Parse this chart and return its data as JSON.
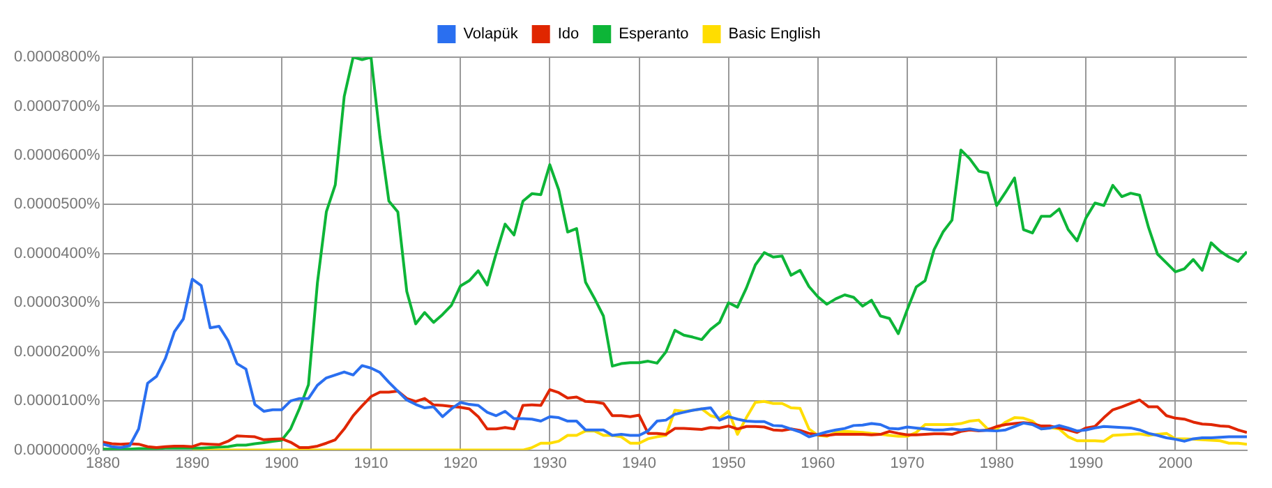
{
  "chart_data": {
    "type": "line",
    "x": [
      1880,
      1881,
      1882,
      1883,
      1884,
      1885,
      1886,
      1887,
      1888,
      1889,
      1890,
      1891,
      1892,
      1893,
      1894,
      1895,
      1896,
      1897,
      1898,
      1899,
      1900,
      1901,
      1902,
      1903,
      1904,
      1905,
      1906,
      1907,
      1908,
      1909,
      1910,
      1911,
      1912,
      1913,
      1914,
      1915,
      1916,
      1917,
      1918,
      1919,
      1920,
      1921,
      1922,
      1923,
      1924,
      1925,
      1926,
      1927,
      1928,
      1929,
      1930,
      1931,
      1932,
      1933,
      1934,
      1935,
      1936,
      1937,
      1938,
      1939,
      1940,
      1941,
      1942,
      1943,
      1944,
      1945,
      1946,
      1947,
      1948,
      1949,
      1950,
      1951,
      1952,
      1953,
      1954,
      1955,
      1956,
      1957,
      1958,
      1959,
      1960,
      1961,
      1962,
      1963,
      1964,
      1965,
      1966,
      1967,
      1968,
      1969,
      1970,
      1971,
      1972,
      1973,
      1974,
      1975,
      1976,
      1977,
      1978,
      1979,
      1980,
      1981,
      1982,
      1983,
      1984,
      1985,
      1986,
      1987,
      1988,
      1989,
      1990,
      1991,
      1992,
      1993,
      1994,
      1995,
      1996,
      1997,
      1998,
      1999,
      2000,
      2001,
      2002,
      2003,
      2004,
      2005,
      2006,
      2007,
      2008
    ],
    "series": [
      {
        "name": "Volapük",
        "color": "#2a6ff0",
        "values": [
          1.2e-06,
          7e-07,
          5e-07,
          9e-07,
          4.3e-06,
          1.36e-05,
          1.5e-05,
          1.87e-05,
          2.41e-05,
          2.67e-05,
          3.48e-05,
          3.35e-05,
          2.49e-05,
          2.52e-05,
          2.23e-05,
          1.76e-05,
          1.65e-05,
          9.3e-06,
          7.9e-06,
          8.2e-06,
          8.2e-06,
          1e-05,
          1.05e-05,
          1.05e-05,
          1.32e-05,
          1.47e-05,
          1.53e-05,
          1.59e-05,
          1.53e-05,
          1.72e-05,
          1.67e-05,
          1.58e-05,
          1.38e-05,
          1.2e-05,
          1.02e-05,
          9.3e-06,
          8.6e-06,
          8.8e-06,
          6.8e-06,
          8.4e-06,
          9.7e-06,
          9.3e-06,
          9.1e-06,
          7.7e-06,
          7e-06,
          7.9e-06,
          6.4e-06,
          6.4e-06,
          6.3e-06,
          5.9e-06,
          6.8e-06,
          6.6e-06,
          5.9e-06,
          5.9e-06,
          4.1e-06,
          4.1e-06,
          4.1e-06,
          3e-06,
          3.2e-06,
          3e-06,
          3e-06,
          3.9e-06,
          5.9e-06,
          6.1e-06,
          7.3e-06,
          7.7e-06,
          8.1e-06,
          8.4e-06,
          8.6e-06,
          6.1e-06,
          6.8e-06,
          6.3e-06,
          5.9e-06,
          5.8e-06,
          5.8e-06,
          5e-06,
          4.9e-06,
          4.3e-06,
          3.7e-06,
          2.7e-06,
          3.2e-06,
          3.7e-06,
          4.1e-06,
          4.4e-06,
          5e-06,
          5.1e-06,
          5.4e-06,
          5.2e-06,
          4.4e-06,
          4.3e-06,
          4.7e-06,
          4.5e-06,
          4.3e-06,
          4.1e-06,
          4.1e-06,
          4.3e-06,
          4.1e-06,
          4.3e-06,
          4e-06,
          4e-06,
          3.9e-06,
          4.1e-06,
          4.8e-06,
          5.5e-06,
          5.2e-06,
          4.3e-06,
          4.5e-06,
          5e-06,
          4.5e-06,
          3.9e-06,
          4.1e-06,
          4.5e-06,
          4.8e-06,
          4.7e-06,
          4.6e-06,
          4.5e-06,
          4.1e-06,
          3.4e-06,
          3e-06,
          2.5e-06,
          2.2e-06,
          1.8e-06,
          2.3e-06,
          2.5e-06,
          2.5e-06,
          2.6e-06,
          2.7e-06,
          2.7e-06,
          2.7e-06
        ]
      },
      {
        "name": "Ido",
        "color": "#e02600",
        "values": [
          1.6e-06,
          1.3e-06,
          1.2e-06,
          1.3e-06,
          1.2e-06,
          7e-07,
          5e-07,
          7e-07,
          8e-07,
          8e-07,
          7e-07,
          1.3e-06,
          1.2e-06,
          1.1e-06,
          1.8e-06,
          2.9e-06,
          2.8e-06,
          2.7e-06,
          2.1e-06,
          2.2e-06,
          2.3e-06,
          1.6e-06,
          5e-07,
          5e-07,
          8e-07,
          1.4e-06,
          2.1e-06,
          4.3e-06,
          7e-06,
          9e-06,
          1.09e-05,
          1.18e-05,
          1.18e-05,
          1.2e-05,
          1.05e-05,
          9.9e-06,
          1.05e-05,
          9.2e-06,
          9.1e-06,
          8.9e-06,
          8.7e-06,
          8.4e-06,
          6.8e-06,
          4.3e-06,
          4.3e-06,
          4.6e-06,
          4.3e-06,
          9.1e-06,
          9.2e-06,
          9.1e-06,
          1.23e-05,
          1.17e-05,
          1.06e-05,
          1.08e-05,
          9.9e-06,
          9.8e-06,
          9.5e-06,
          7e-06,
          7e-06,
          6.8e-06,
          7.1e-06,
          3.4e-06,
          3.4e-06,
          3.2e-06,
          4.4e-06,
          4.4e-06,
          4.3e-06,
          4.2e-06,
          4.6e-06,
          4.5e-06,
          4.9e-06,
          4.3e-06,
          4.8e-06,
          4.8e-06,
          4.7e-06,
          4.1e-06,
          4e-06,
          4.3e-06,
          4e-06,
          3.4e-06,
          3.1e-06,
          3e-06,
          3.2e-06,
          3.2e-06,
          3.2e-06,
          3.2e-06,
          3.1e-06,
          3.2e-06,
          3.8e-06,
          3.4e-06,
          3.1e-06,
          3.1e-06,
          3.2e-06,
          3.3e-06,
          3.3e-06,
          3.2e-06,
          3.8e-06,
          4.1e-06,
          3.9e-06,
          4.1e-06,
          4.8e-06,
          5.2e-06,
          5.4e-06,
          5.6e-06,
          5.4e-06,
          4.9e-06,
          4.9e-06,
          4.5e-06,
          4.1e-06,
          3.6e-06,
          4.5e-06,
          4.8e-06,
          6.6e-06,
          8.2e-06,
          8.8e-06,
          9.5e-06,
          1.02e-05,
          8.8e-06,
          8.8e-06,
          7e-06,
          6.5e-06,
          6.3e-06,
          5.7e-06,
          5.3e-06,
          5.2e-06,
          4.9e-06,
          4.8e-06,
          4.1e-06,
          3.6e-06
        ]
      },
      {
        "name": "Esperanto",
        "color": "#0db537",
        "values": [
          2e-07,
          2e-07,
          2e-07,
          2e-07,
          3e-07,
          3e-07,
          3e-07,
          4e-07,
          4e-07,
          4e-07,
          4e-07,
          4e-07,
          5e-07,
          6e-07,
          7e-07,
          1e-06,
          1e-06,
          1.3e-06,
          1.5e-06,
          1.8e-06,
          2e-06,
          4.3e-06,
          8.5e-06,
          1.33e-05,
          3.4e-05,
          4.85e-05,
          5.4e-05,
          7.2e-05,
          8e-05,
          7.95e-05,
          8e-05,
          6.38e-05,
          5.07e-05,
          4.85e-05,
          3.23e-05,
          2.57e-05,
          2.8e-05,
          2.6e-05,
          2.76e-05,
          2.95e-05,
          3.34e-05,
          3.45e-05,
          3.65e-05,
          3.36e-05,
          4e-05,
          4.6e-05,
          4.38e-05,
          5.07e-05,
          5.22e-05,
          5.2e-05,
          5.81e-05,
          5.3e-05,
          4.44e-05,
          4.51e-05,
          3.42e-05,
          3.09e-05,
          2.73e-05,
          1.71e-05,
          1.76e-05,
          1.78e-05,
          1.78e-05,
          1.81e-05,
          1.77e-05,
          2e-05,
          2.44e-05,
          2.34e-05,
          2.3e-05,
          2.25e-05,
          2.46e-05,
          2.6e-05,
          3e-05,
          2.91e-05,
          3.3e-05,
          3.77e-05,
          4.02e-05,
          3.93e-05,
          3.95e-05,
          3.56e-05,
          3.66e-05,
          3.33e-05,
          3.12e-05,
          2.97e-05,
          3.08e-05,
          3.16e-05,
          3.11e-05,
          2.93e-05,
          3.05e-05,
          2.73e-05,
          2.68e-05,
          2.37e-05,
          2.86e-05,
          3.32e-05,
          3.45e-05,
          4.08e-05,
          4.44e-05,
          4.68e-05,
          6.11e-05,
          5.93e-05,
          5.68e-05,
          5.64e-05,
          4.98e-05,
          5.25e-05,
          5.54e-05,
          4.49e-05,
          4.42e-05,
          4.76e-05,
          4.76e-05,
          4.91e-05,
          4.49e-05,
          4.26e-05,
          4.73e-05,
          5.03e-05,
          4.98e-05,
          5.39e-05,
          5.16e-05,
          5.23e-05,
          5.19e-05,
          4.53e-05,
          3.99e-05,
          3.81e-05,
          3.63e-05,
          3.69e-05,
          3.88e-05,
          3.66e-05,
          4.22e-05,
          4.05e-05,
          3.93e-05,
          3.84e-05,
          4.04e-05
        ]
      },
      {
        "name": "Basic English",
        "color": "#ffdd00",
        "values": [
          null,
          null,
          null,
          null,
          null,
          null,
          null,
          null,
          null,
          null,
          0,
          0,
          0,
          0,
          0,
          0,
          0,
          0,
          0,
          0,
          0,
          0,
          0,
          0,
          0,
          0,
          0,
          0,
          0,
          0,
          0,
          0,
          0,
          0,
          0,
          0,
          0,
          0,
          0,
          0,
          0,
          0,
          0,
          0,
          0,
          0,
          0,
          0,
          5e-07,
          1.4e-06,
          1.4e-06,
          1.8e-06,
          3e-06,
          3e-06,
          3.9e-06,
          3.9e-06,
          3e-06,
          3e-06,
          2.7e-06,
          1.4e-06,
          1.4e-06,
          2.3e-06,
          2.7e-06,
          3e-06,
          8.1e-06,
          7.9e-06,
          8.1e-06,
          8.4e-06,
          7e-06,
          6.5e-06,
          7.9e-06,
          3.2e-06,
          6.6e-06,
          9.7e-06,
          9.9e-06,
          9.5e-06,
          9.5e-06,
          8.6e-06,
          8.5e-06,
          4.3e-06,
          3e-06,
          2.8e-06,
          3.6e-06,
          3.8e-06,
          3.7e-06,
          3.6e-06,
          3.4e-06,
          3.2e-06,
          3e-06,
          2.8e-06,
          2.8e-06,
          3.6e-06,
          5.2e-06,
          5.2e-06,
          5.2e-06,
          5.2e-06,
          5.4e-06,
          5.9e-06,
          6.1e-06,
          4.3e-06,
          4.3e-06,
          5.7e-06,
          6.6e-06,
          6.5e-06,
          5.9e-06,
          4.3e-06,
          4.6e-06,
          4.3e-06,
          2.7e-06,
          1.9e-06,
          1.9e-06,
          1.9e-06,
          1.8e-06,
          3e-06,
          3.1e-06,
          3.2e-06,
          3.3e-06,
          3e-06,
          3.2e-06,
          3.4e-06,
          2.3e-06,
          2.3e-06,
          2.2e-06,
          2.1e-06,
          2e-06,
          1.9e-06,
          1.4e-06,
          1.4e-06,
          1.2e-06
        ]
      }
    ],
    "xlim": [
      1880,
      2008
    ],
    "xticks": [
      1880,
      1890,
      1900,
      1910,
      1920,
      1930,
      1940,
      1950,
      1960,
      1970,
      1980,
      1990,
      2000
    ],
    "ylim": [
      0,
      8e-05
    ],
    "yticks": [
      {
        "value": 0,
        "label": "0.0000000%"
      },
      {
        "value": 1e-05,
        "label": "0.0000100%"
      },
      {
        "value": 2e-05,
        "label": "0.0000200%"
      },
      {
        "value": 3e-05,
        "label": "0.0000300%"
      },
      {
        "value": 4e-05,
        "label": "0.0000400%"
      },
      {
        "value": 5e-05,
        "label": "0.0000500%"
      },
      {
        "value": 6e-05,
        "label": "0.0000600%"
      },
      {
        "value": 7e-05,
        "label": "0.0000700%"
      },
      {
        "value": 8e-05,
        "label": "0.0000800%"
      }
    ],
    "grid": true,
    "legend": "top",
    "marker": "none",
    "line_style": "solid"
  }
}
